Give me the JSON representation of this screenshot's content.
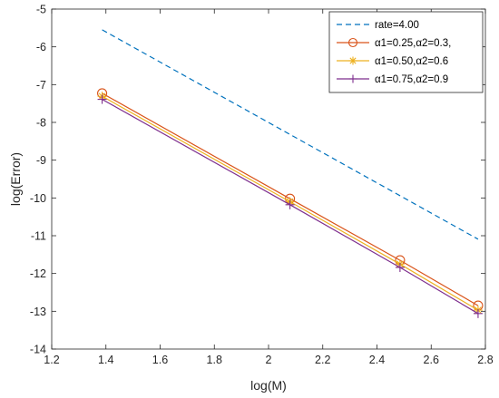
{
  "chart_data": {
    "type": "line",
    "xlabel": "log(M)",
    "ylabel": "log(Error)",
    "xlim": [
      1.2,
      2.8
    ],
    "ylim": [
      -14,
      -5
    ],
    "xticks": [
      "1.2",
      "1.4",
      "1.6",
      "1.8",
      "2",
      "2.2",
      "2.4",
      "2.6",
      "2.8"
    ],
    "yticks": [
      "-14",
      "-13",
      "-12",
      "-11",
      "-10",
      "-9",
      "-8",
      "-7",
      "-6",
      "-5"
    ],
    "grid": false,
    "legend_position": "top-right",
    "series": [
      {
        "name": "rate=4.00",
        "color": "#0072BD",
        "style": "dashed",
        "marker": "none",
        "x": [
          1.386,
          2.773
        ],
        "y": [
          -5.55,
          -11.09
        ]
      },
      {
        "name": "α1=0.25,α2=0.3,",
        "color": "#D95319",
        "style": "solid",
        "marker": "circle",
        "x": [
          1.386,
          2.079,
          2.485,
          2.773
        ],
        "y": [
          -7.23,
          -10.02,
          -11.65,
          -12.85
        ]
      },
      {
        "name": "α1=0.50,α2=0.6",
        "color": "#EDB120",
        "style": "solid",
        "marker": "asterisk",
        "x": [
          1.386,
          2.079,
          2.485,
          2.773
        ],
        "y": [
          -7.31,
          -10.1,
          -11.75,
          -12.97
        ]
      },
      {
        "name": "α1=0.75,α2=0.9",
        "color": "#7E2F8E",
        "style": "solid",
        "marker": "plus",
        "x": [
          1.386,
          2.079,
          2.485,
          2.773
        ],
        "y": [
          -7.39,
          -10.18,
          -11.84,
          -13.06
        ]
      }
    ]
  }
}
